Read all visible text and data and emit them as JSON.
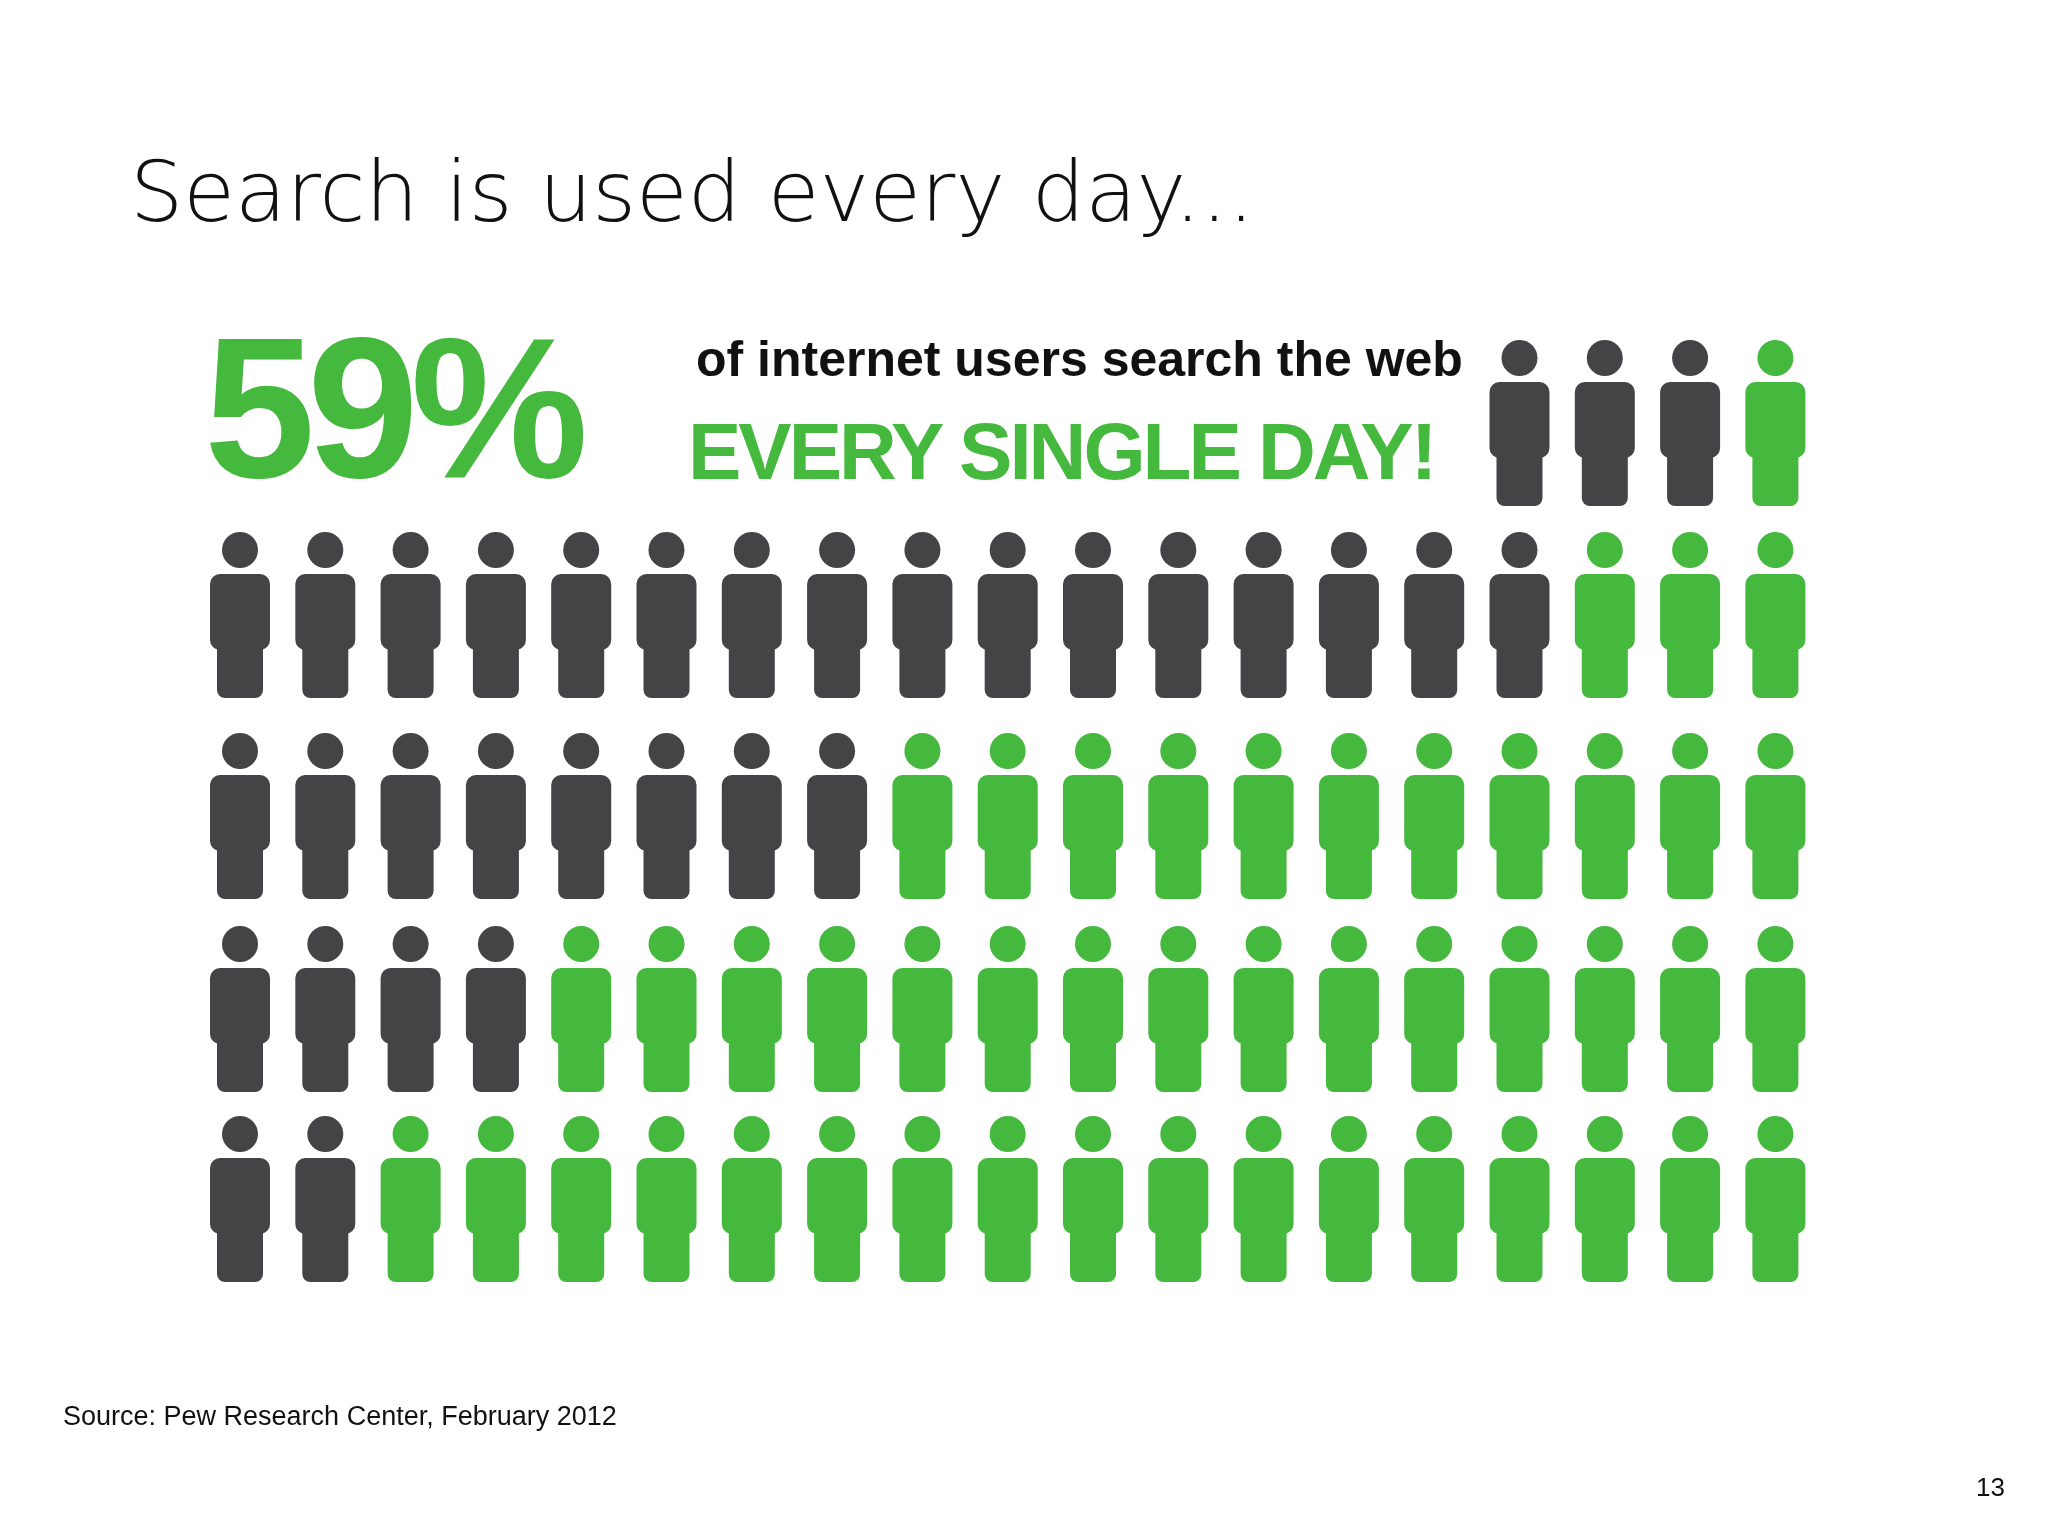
{
  "chart_data": {
    "type": "other",
    "title": "Search is used every day...",
    "values": [
      59
    ],
    "value_labels": [
      "59%"
    ],
    "subtitle": "of internet users search the web",
    "color": "#45b83e",
    "annotations": [
      "EVERY SINGLE DAY!",
      "Source: Pew Research Center, February 2012",
      "13"
    ]
  }
}
